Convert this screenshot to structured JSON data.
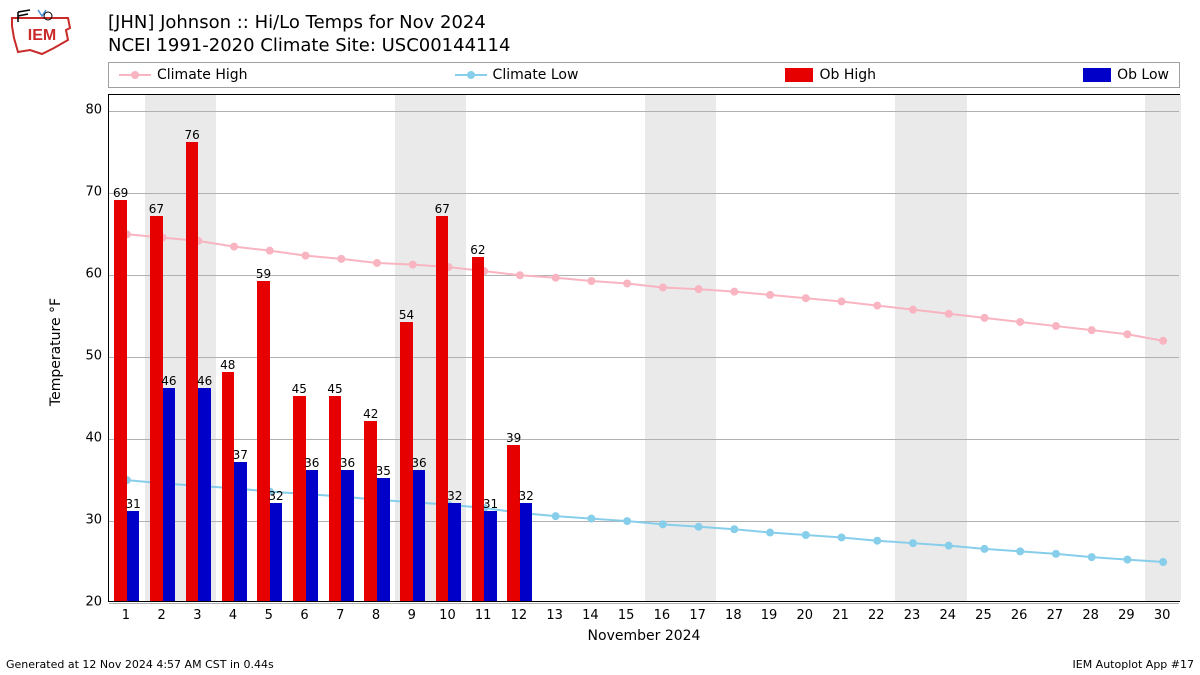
{
  "logo_text": "IEM",
  "logo_text_color": "#c92a2a",
  "logo_outline_color": "#c92a2a",
  "title_line1": "[JHN] Johnson :: Hi/Lo Temps for Nov 2024",
  "title_line2": "NCEI 1991-2020 Climate Site: USC00144114",
  "legend": {
    "climate_high": {
      "label": "Climate High",
      "color": "#f8b4c0"
    },
    "climate_low": {
      "label": "Climate Low",
      "color": "#87ceeb"
    },
    "ob_high": {
      "label": "Ob High",
      "color": "#e60000"
    },
    "ob_low": {
      "label": "Ob Low",
      "color": "#0000c8"
    }
  },
  "chart": {
    "type": "bar+line",
    "ylabel": "Temperature °F",
    "xlabel": "November 2024",
    "yticks": [
      20,
      30,
      40,
      50,
      60,
      70,
      80
    ],
    "ylim_min": 20,
    "ylim_max": 82,
    "days": [
      1,
      2,
      3,
      4,
      5,
      6,
      7,
      8,
      9,
      10,
      11,
      12,
      13,
      14,
      15,
      16,
      17,
      18,
      19,
      20,
      21,
      22,
      23,
      24,
      25,
      26,
      27,
      28,
      29,
      30
    ],
    "weekend_bands": [
      [
        2,
        3
      ],
      [
        9,
        10
      ],
      [
        16,
        17
      ],
      [
        23,
        24
      ],
      [
        30,
        30
      ]
    ],
    "ob_high": [
      69,
      67,
      76,
      48,
      59,
      45,
      45,
      42,
      54,
      67,
      62,
      39
    ],
    "ob_low": [
      31,
      46,
      46,
      37,
      32,
      36,
      36,
      35,
      36,
      32,
      31,
      32
    ],
    "climate_high": [
      65.0,
      64.6,
      64.2,
      63.5,
      63.0,
      62.4,
      62.0,
      61.5,
      61.3,
      61.0,
      60.5,
      60.0,
      59.7,
      59.3,
      59.0,
      58.5,
      58.3,
      58.0,
      57.6,
      57.2,
      56.8,
      56.3,
      55.8,
      55.3,
      54.8,
      54.3,
      53.8,
      53.3,
      52.8,
      52.0
    ],
    "climate_low": [
      35.0,
      34.6,
      34.3,
      34.0,
      33.6,
      33.3,
      33.0,
      32.6,
      32.3,
      32.0,
      31.6,
      31.0,
      30.6,
      30.3,
      30.0,
      29.6,
      29.3,
      29.0,
      28.6,
      28.3,
      28.0,
      27.6,
      27.3,
      27.0,
      26.6,
      26.3,
      26.0,
      25.6,
      25.3,
      25.0
    ],
    "bar_colors": {
      "high": "#e60000",
      "low": "#0000c8"
    },
    "line_colors": {
      "high": "#f8b4c0",
      "low": "#87ceeb"
    },
    "background_color": "#ffffff",
    "weekend_color": "#eaeaea",
    "grid_color": "#b0b0b0",
    "title_fontsize": 18,
    "label_fontsize": 14,
    "tick_fontsize": 13,
    "barlabel_fontsize": 12,
    "bar_group_width": 0.7,
    "marker_radius": 4,
    "line_width": 2
  },
  "footer_left": "Generated at 12 Nov 2024 4:57 AM CST in 0.44s",
  "footer_right": "IEM Autoplot App #17"
}
